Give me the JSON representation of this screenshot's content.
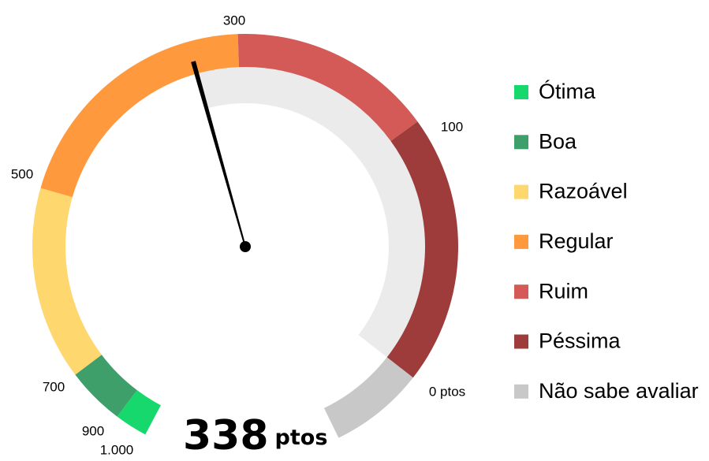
{
  "chart_data": {
    "type": "gauge",
    "value": 338,
    "unit": "ptos",
    "ticks": [
      {
        "value": 0,
        "label": "0 ptos"
      },
      100,
      300,
      500,
      700,
      900,
      {
        "value": 1000,
        "label": "1.000"
      }
    ],
    "segments": [
      {
        "name": "Ótima",
        "color": "#16d86c",
        "from": 900,
        "to": 1000
      },
      {
        "name": "Boa",
        "color": "#3f9f6b",
        "from": 700,
        "to": 900
      },
      {
        "name": "Razoável",
        "color": "#ffd76f",
        "from": 500,
        "to": 700
      },
      {
        "name": "Regular",
        "color": "#ff993d",
        "from": 300,
        "to": 500
      },
      {
        "name": "Ruim",
        "color": "#d45a58",
        "from": 100,
        "to": 300
      },
      {
        "name": "Péssima",
        "color": "#9d3c3b",
        "from": 0,
        "to": 100
      },
      {
        "name": "Não sabe avaliar",
        "color": "#c8c8c8"
      }
    ],
    "progress_color": "#ebebeb",
    "needle_color": "#000000"
  }
}
